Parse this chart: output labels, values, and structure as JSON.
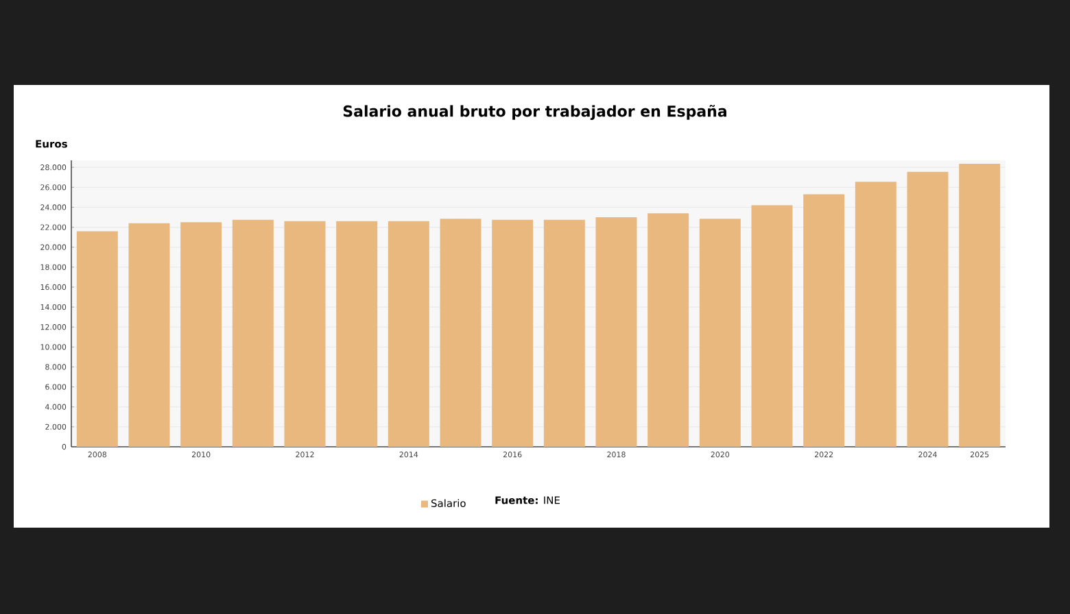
{
  "chart_data": {
    "type": "bar",
    "title": "Salario anual bruto por trabajador en España",
    "ylabel": "Euros",
    "categories": [
      "2008",
      null,
      "2010",
      null,
      "2012",
      null,
      "2014",
      null,
      "2016",
      null,
      "2018",
      null,
      "2020",
      null,
      "2022",
      null,
      "2024",
      "2025"
    ],
    "series": [
      {
        "name": "Salario",
        "color": "#e8b87f",
        "values": [
          21600,
          22400,
          22500,
          22750,
          22600,
          22600,
          22600,
          22850,
          22750,
          22750,
          23000,
          23400,
          22850,
          24200,
          25300,
          26550,
          27550,
          28350
        ]
      }
    ],
    "ylim": [
      0,
      28700
    ],
    "yticks": [
      0,
      {
        "value": 2000,
        "label": "2.000"
      },
      {
        "value": 4000,
        "label": "4.000"
      },
      {
        "value": 6000,
        "label": "6.000"
      },
      {
        "value": 8000,
        "label": "8.000"
      },
      {
        "value": 10000,
        "label": "10.000"
      },
      {
        "value": 12000,
        "label": "12.000"
      },
      {
        "value": 14000,
        "label": "14.000"
      },
      {
        "value": 16000,
        "label": "16.000"
      },
      {
        "value": 18000,
        "label": "18.000"
      },
      {
        "value": 20000,
        "label": "20.000"
      },
      {
        "value": 22000,
        "label": "22.000"
      },
      {
        "value": 24000,
        "label": "24.000"
      },
      {
        "value": 26000,
        "label": "26.000"
      },
      {
        "value": 28000,
        "label": "28.000"
      }
    ],
    "grid": "y",
    "legend": "bottom",
    "annotations": [
      "**Fuente:** INE"
    ]
  }
}
